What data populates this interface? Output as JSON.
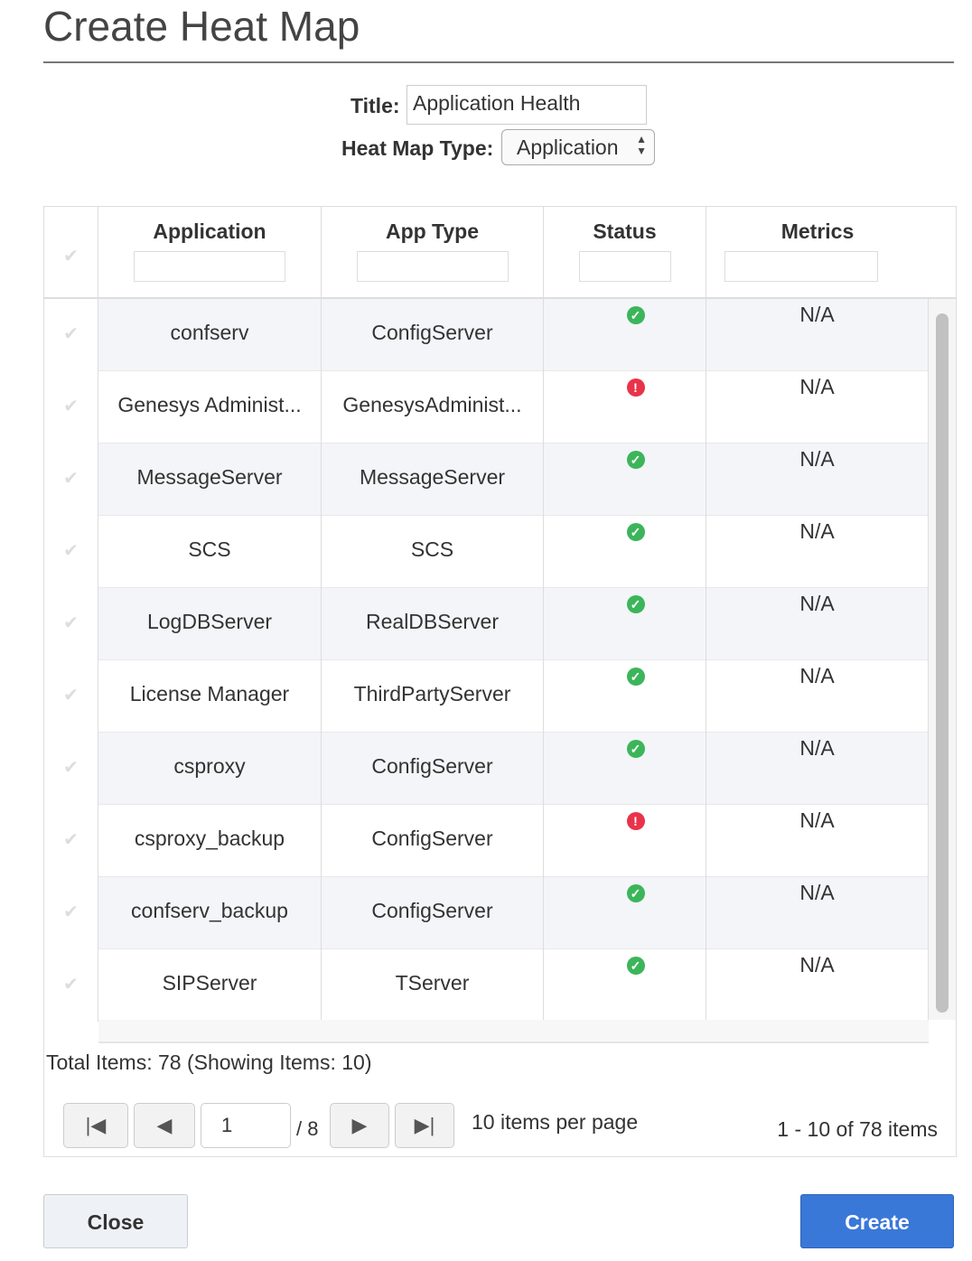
{
  "page_title": "Create Heat Map",
  "form": {
    "title_label": "Title:",
    "title_value": "Application Health",
    "type_label": "Heat Map Type:",
    "type_value": "Application"
  },
  "table": {
    "columns": [
      "Application",
      "App Type",
      "Status",
      "Metrics"
    ],
    "rows": [
      {
        "app": "confserv",
        "type": "ConfigServer",
        "status": "ok",
        "metrics": "N/A"
      },
      {
        "app": "Genesys Administ...",
        "type": "GenesysAdminist...",
        "status": "error",
        "metrics": "N/A"
      },
      {
        "app": "MessageServer",
        "type": "MessageServer",
        "status": "ok",
        "metrics": "N/A"
      },
      {
        "app": "SCS",
        "type": "SCS",
        "status": "ok",
        "metrics": "N/A"
      },
      {
        "app": "LogDBServer",
        "type": "RealDBServer",
        "status": "ok",
        "metrics": "N/A"
      },
      {
        "app": "License Manager",
        "type": "ThirdPartyServer",
        "status": "ok",
        "metrics": "N/A"
      },
      {
        "app": "csproxy",
        "type": "ConfigServer",
        "status": "ok",
        "metrics": "N/A"
      },
      {
        "app": "csproxy_backup",
        "type": "ConfigServer",
        "status": "error",
        "metrics": "N/A"
      },
      {
        "app": "confserv_backup",
        "type": "ConfigServer",
        "status": "ok",
        "metrics": "N/A"
      },
      {
        "app": "SIPServer",
        "type": "TServer",
        "status": "ok",
        "metrics": "N/A"
      }
    ]
  },
  "footer": {
    "total": "Total Items: 78 (Showing Items: 10)",
    "page": "1",
    "page_count": "/ 8",
    "per_page": "10 items per page",
    "range": "1 - 10 of 78 items"
  },
  "buttons": {
    "close": "Close",
    "create": "Create"
  },
  "colors": {
    "ok": "#3cb55a",
    "error": "#e8334a",
    "primary": "#3a78d8"
  }
}
